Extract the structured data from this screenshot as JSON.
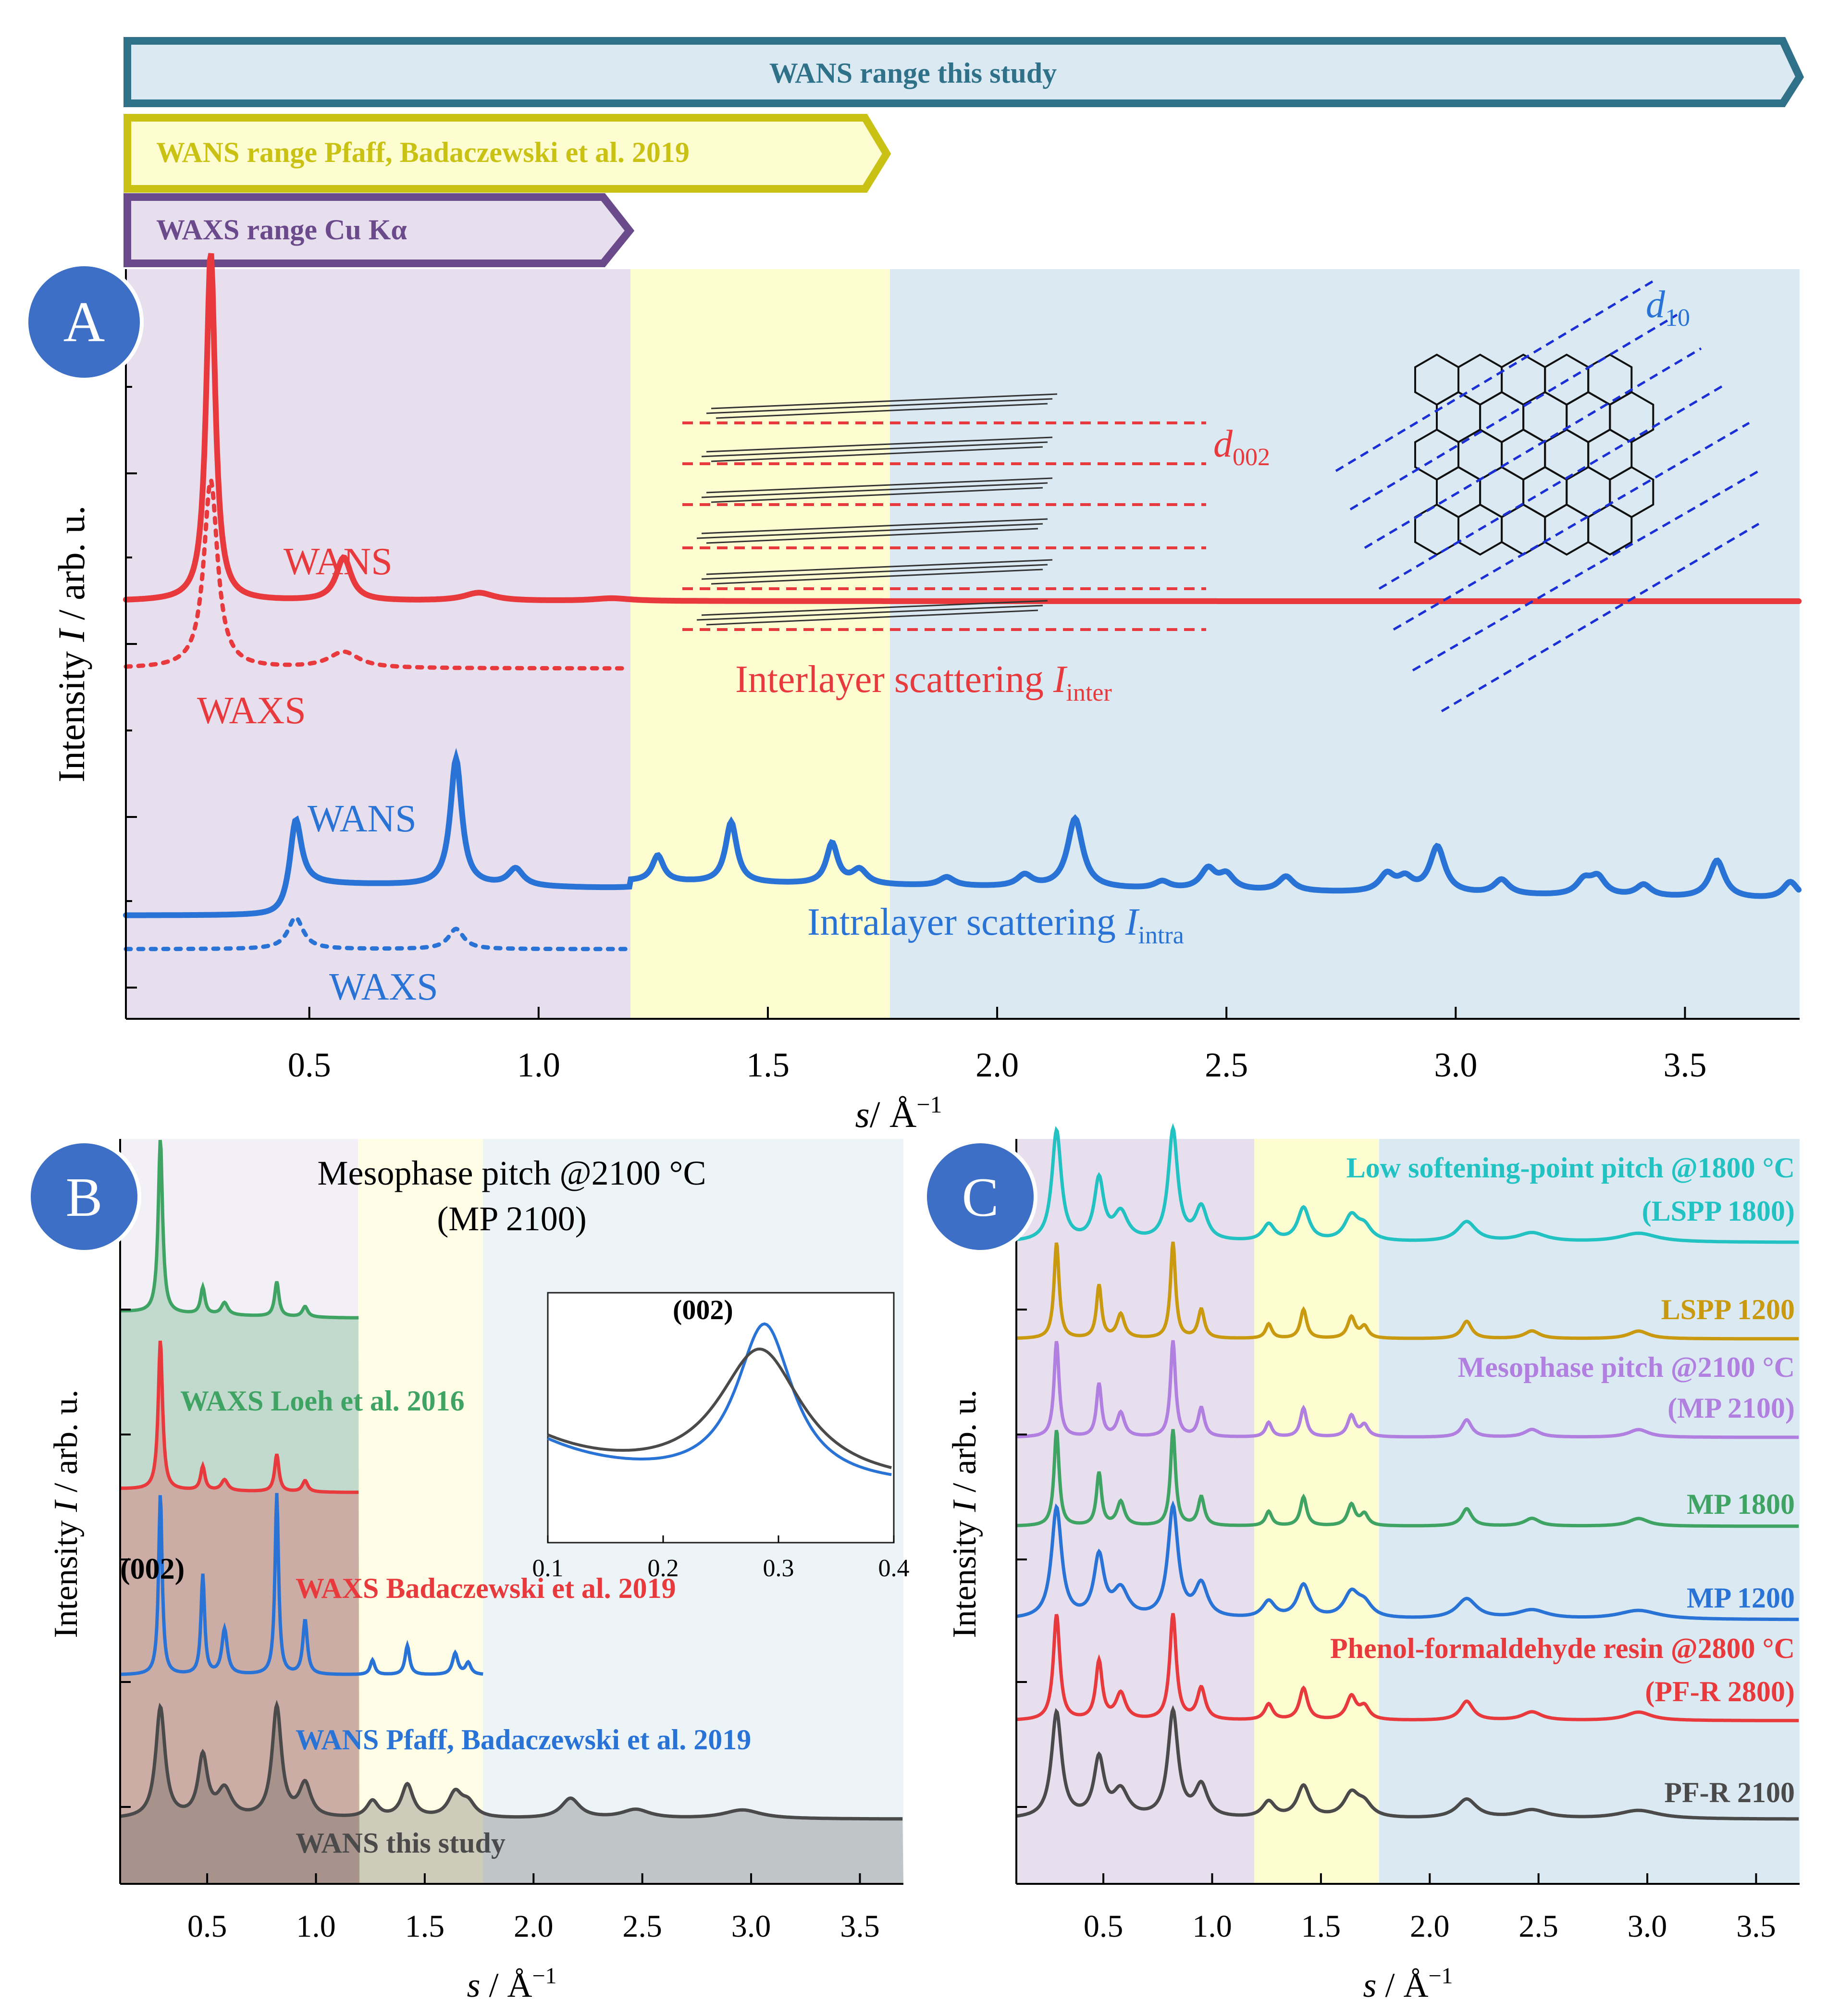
{
  "colors": {
    "purple_bg": "#e8dfee",
    "yellow_bg": "#fefdd2",
    "blue_bg": "#dbeaf2",
    "wans_red": "#e8393c",
    "wans_blue": "#2a73d6",
    "green": "#3fa463",
    "gray": "#4a4a4a",
    "cyan": "#23c2c2",
    "gold": "#c99a10",
    "violet": "#b07fe0",
    "range_teal": "#2f7189",
    "range_yellow": "#c9c215",
    "range_purple": "#6b4a8c",
    "badge": "#3c6fc5"
  },
  "ranges": {
    "this_study": "WANS range this study",
    "pfaff": "WANS range Pfaff, Badaczewski et al. 2019",
    "waxs": "WAXS range Cu Kα"
  },
  "panels": {
    "A": {
      "badge": "A"
    },
    "B": {
      "badge": "B"
    },
    "C": {
      "badge": "C"
    }
  },
  "chart_data": [
    {
      "panel": "A",
      "type": "line",
      "xlabel_var": "s",
      "xlabel_unit": "/  Å",
      "xlabel_exp": "−1",
      "ylabel_pre": "Intensity ",
      "ylabel_var": "I",
      "ylabel_post": " / arb. u.",
      "xlim": [
        0.1,
        3.75
      ],
      "xticks": [
        0.5,
        1.0,
        1.5,
        2.0,
        2.5,
        3.0,
        3.5
      ],
      "xtick_labels": [
        "0.5",
        "1.0",
        "1.5",
        "2.0",
        "2.5",
        "3.0",
        "3.5"
      ],
      "regions": [
        {
          "name": "WAXS range",
          "from": 0.1,
          "to": 1.2,
          "color": "purple_bg"
        },
        {
          "name": "WANS Pfaff range",
          "from": 1.2,
          "to": 1.77,
          "color": "yellow_bg"
        },
        {
          "name": "WANS this study range",
          "from": 1.77,
          "to": 3.75,
          "color": "blue_bg"
        }
      ],
      "series": [
        {
          "name": "Interlayer WANS",
          "baseline": 0.3,
          "xmax": 3.75,
          "peaks": [
            [
              0.285,
              2.6,
              0.012
            ],
            [
              0.575,
              0.32,
              0.02
            ],
            [
              0.87,
              0.06,
              0.04
            ],
            [
              1.16,
              0.02,
              0.05
            ]
          ]
        },
        {
          "name": "Interlayer WAXS",
          "baseline": 0.05,
          "xmax": 1.2,
          "peaks": [
            [
              0.285,
              1.4,
              0.018
            ],
            [
              0.575,
              0.12,
              0.04
            ]
          ]
        },
        {
          "name": "Intralayer WANS",
          "baseline": 0.0,
          "xmax": 3.75,
          "peaks": [
            [
              0.47,
              0.5,
              0.015
            ],
            [
              0.82,
              0.88,
              0.015
            ],
            [
              0.95,
              0.12,
              0.02
            ],
            [
              1.26,
              0.18,
              0.015
            ],
            [
              1.42,
              0.42,
              0.015
            ],
            [
              1.64,
              0.28,
              0.015
            ],
            [
              1.7,
              0.1,
              0.02
            ],
            [
              1.89,
              0.06,
              0.02
            ],
            [
              2.06,
              0.08,
              0.02
            ],
            [
              2.17,
              0.48,
              0.02
            ],
            [
              2.36,
              0.05,
              0.02
            ],
            [
              2.46,
              0.14,
              0.02
            ],
            [
              2.5,
              0.1,
              0.02
            ],
            [
              2.63,
              0.1,
              0.02
            ],
            [
              2.85,
              0.12,
              0.02
            ],
            [
              2.89,
              0.09,
              0.02
            ],
            [
              2.96,
              0.32,
              0.02
            ],
            [
              3.1,
              0.1,
              0.02
            ],
            [
              3.28,
              0.1,
              0.02
            ],
            [
              3.31,
              0.12,
              0.02
            ],
            [
              3.41,
              0.08,
              0.02
            ],
            [
              3.57,
              0.26,
              0.02
            ],
            [
              3.73,
              0.12,
              0.02
            ]
          ]
        },
        {
          "name": "Intralayer WAXS",
          "baseline": 0.0,
          "xmax": 1.2,
          "peaks": [
            [
              0.47,
              0.22,
              0.02
            ],
            [
              0.82,
              0.14,
              0.02
            ]
          ]
        }
      ],
      "labels": {
        "wans_inter": "WANS",
        "waxs_inter": "WAXS",
        "inter_main": "Interlayer scattering ",
        "inter_var": "I",
        "inter_sub": "inter",
        "wans_intra": "WANS",
        "waxs_intra": "WAXS",
        "intra_main": "Intralayer scattering ",
        "intra_var": "I",
        "intra_sub": "intra",
        "d002_var": "d",
        "d002_sub": "002",
        "d10_var": "d",
        "d10_sub": "10"
      }
    },
    {
      "panel": "B",
      "type": "line",
      "title_line1": "Mesophase pitch @2100 °C",
      "title_line2": "(MP 2100)",
      "xlabel_var": "s",
      "xlabel_unit": " / Å",
      "xlabel_exp": "−1",
      "ylabel_pre": "Intensity ",
      "ylabel_var": "I",
      "ylabel_post": " / arb. u.",
      "xlim": [
        0.1,
        3.7
      ],
      "xticks": [
        0.5,
        1.0,
        1.5,
        2.0,
        2.5,
        3.0,
        3.5
      ],
      "xtick_labels": [
        "0.5",
        "1.0",
        "1.5",
        "2.0",
        "2.5",
        "3.0",
        "3.5"
      ],
      "series": [
        {
          "name": "WAXS Loeh et al. 2016",
          "color": "green",
          "xmax": 1.2
        },
        {
          "name": "WAXS Badaczewski et al. 2019",
          "color": "wans_red",
          "xmax": 1.2
        },
        {
          "name": "WANS Pfaff, Badaczewski et al. 2019",
          "color": "wans_blue",
          "xmax": 1.77
        },
        {
          "name": "WANS this study",
          "color": "gray",
          "xmax": 3.7
        }
      ],
      "peak_label": "(002)",
      "inset": {
        "xlim": [
          0.1,
          0.4
        ],
        "xticks": [
          0.1,
          0.2,
          0.3,
          0.4
        ],
        "xtick_labels": [
          "0.1",
          "0.2",
          "0.3",
          "0.4"
        ],
        "peak_label": "(002)",
        "series": [
          {
            "name": "WANS Pfaff",
            "color": "wans_blue",
            "center": 0.288,
            "width": 0.03,
            "height": 1.0
          },
          {
            "name": "WANS this study",
            "color": "gray",
            "center": 0.284,
            "width": 0.045,
            "height": 0.84
          }
        ]
      }
    },
    {
      "panel": "C",
      "type": "line",
      "xlabel_var": "s",
      "xlabel_unit": " / Å",
      "xlabel_exp": "−1",
      "ylabel_pre": "Intensity ",
      "ylabel_var": "I",
      "ylabel_post": " / arb. u.",
      "xlim": [
        0.1,
        3.7
      ],
      "xticks": [
        0.5,
        1.0,
        1.5,
        2.0,
        2.5,
        3.0,
        3.5
      ],
      "xtick_labels": [
        "0.5",
        "1.0",
        "1.5",
        "2.0",
        "2.5",
        "3.0",
        "3.5"
      ],
      "series": [
        {
          "name": "LSPP 1800",
          "label1": "Low softening-point pitch @1800 °C",
          "label2": "(LSPP 1800)",
          "color": "cyan"
        },
        {
          "name": "LSPP 1200",
          "label1": "LSPP 1200",
          "label2": "",
          "color": "gold"
        },
        {
          "name": "MP 2100",
          "label1": "Mesophase pitch @2100 °C",
          "label2": "(MP 2100)",
          "color": "violet"
        },
        {
          "name": "MP 1800",
          "label1": "MP 1800",
          "label2": "",
          "color": "green"
        },
        {
          "name": "MP 1200",
          "label1": "MP 1200",
          "label2": "",
          "color": "wans_blue"
        },
        {
          "name": "PF-R 2800",
          "label1": "Phenol-formaldehyde resin @2800 °C",
          "label2": "(PF-R 2800)",
          "color": "wans_red"
        },
        {
          "name": "PF-R 2100",
          "label1": "PF-R 2100",
          "label2": "",
          "color": "gray"
        }
      ]
    }
  ]
}
